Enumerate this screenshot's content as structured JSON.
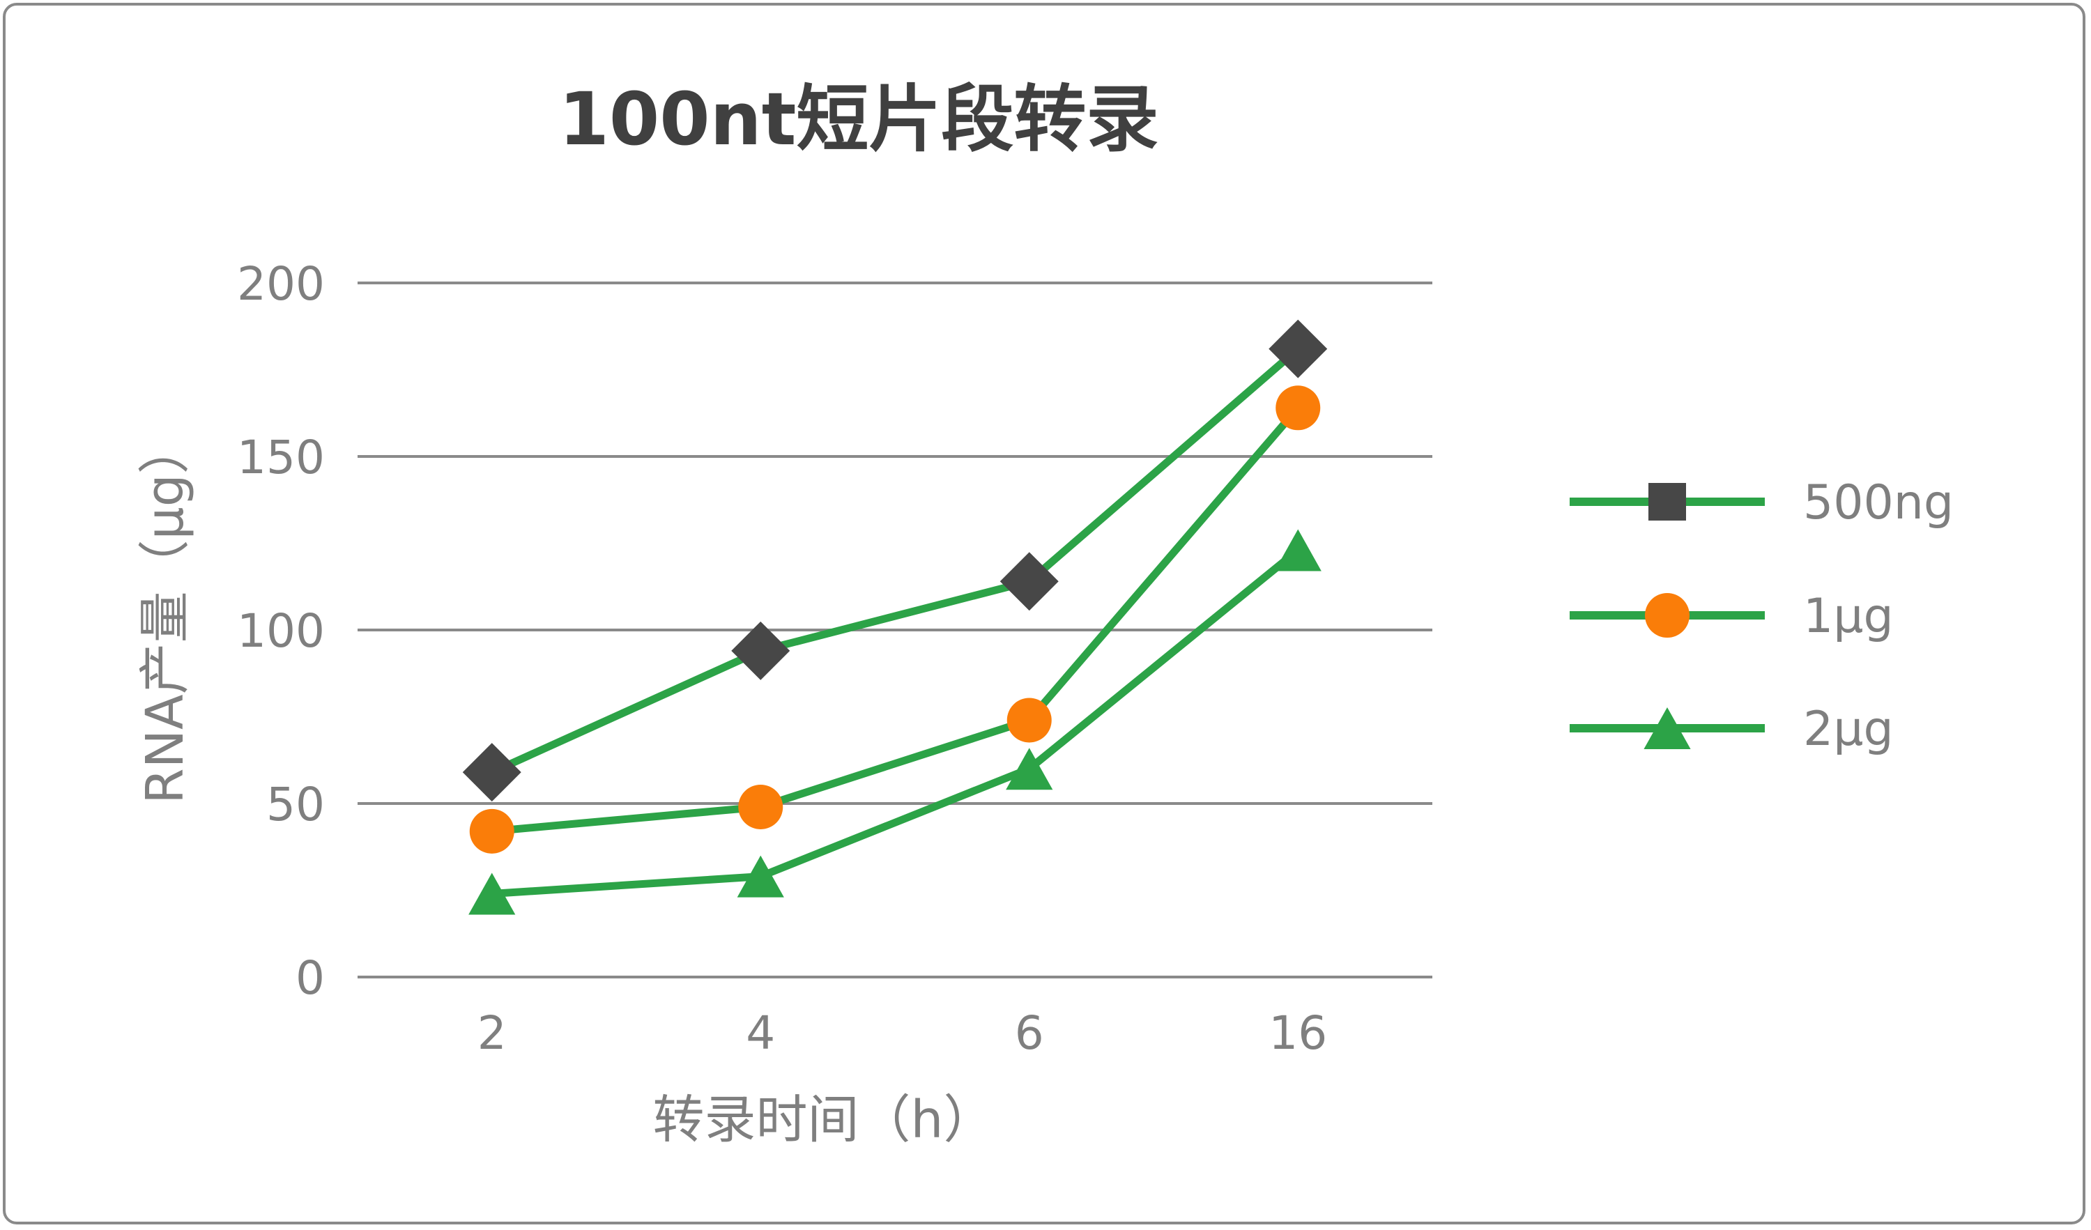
{
  "chart_data": {
    "type": "line",
    "title": "100nt短片段转录",
    "xlabel": "转录时间（h）",
    "ylabel": "RNA产量（μg）",
    "categories": [
      "2",
      "4",
      "6",
      "16"
    ],
    "yticks": [
      "0",
      "50",
      "100",
      "150",
      "200"
    ],
    "ylim": [
      0,
      200
    ],
    "grid": true,
    "legend_position": "right",
    "series": [
      {
        "name": "500ng",
        "values": [
          59,
          94,
          114,
          181
        ],
        "marker": "diamond",
        "legend_marker": "square",
        "line_color": "#2ca347",
        "marker_color": "#474747"
      },
      {
        "name": "1μg",
        "values": [
          42,
          49,
          74,
          164
        ],
        "marker": "circle",
        "legend_marker": "circle",
        "line_color": "#2ca347",
        "marker_color": "#fa7d09"
      },
      {
        "name": "2μg",
        "values": [
          24,
          29,
          60,
          123
        ],
        "marker": "triangle",
        "legend_marker": "triangle",
        "line_color": "#2ca347",
        "marker_color": "#2ca347"
      }
    ],
    "colors": {
      "gridline": "#8a8a8a",
      "text": "#7f7f7f",
      "title": "#404040"
    }
  }
}
